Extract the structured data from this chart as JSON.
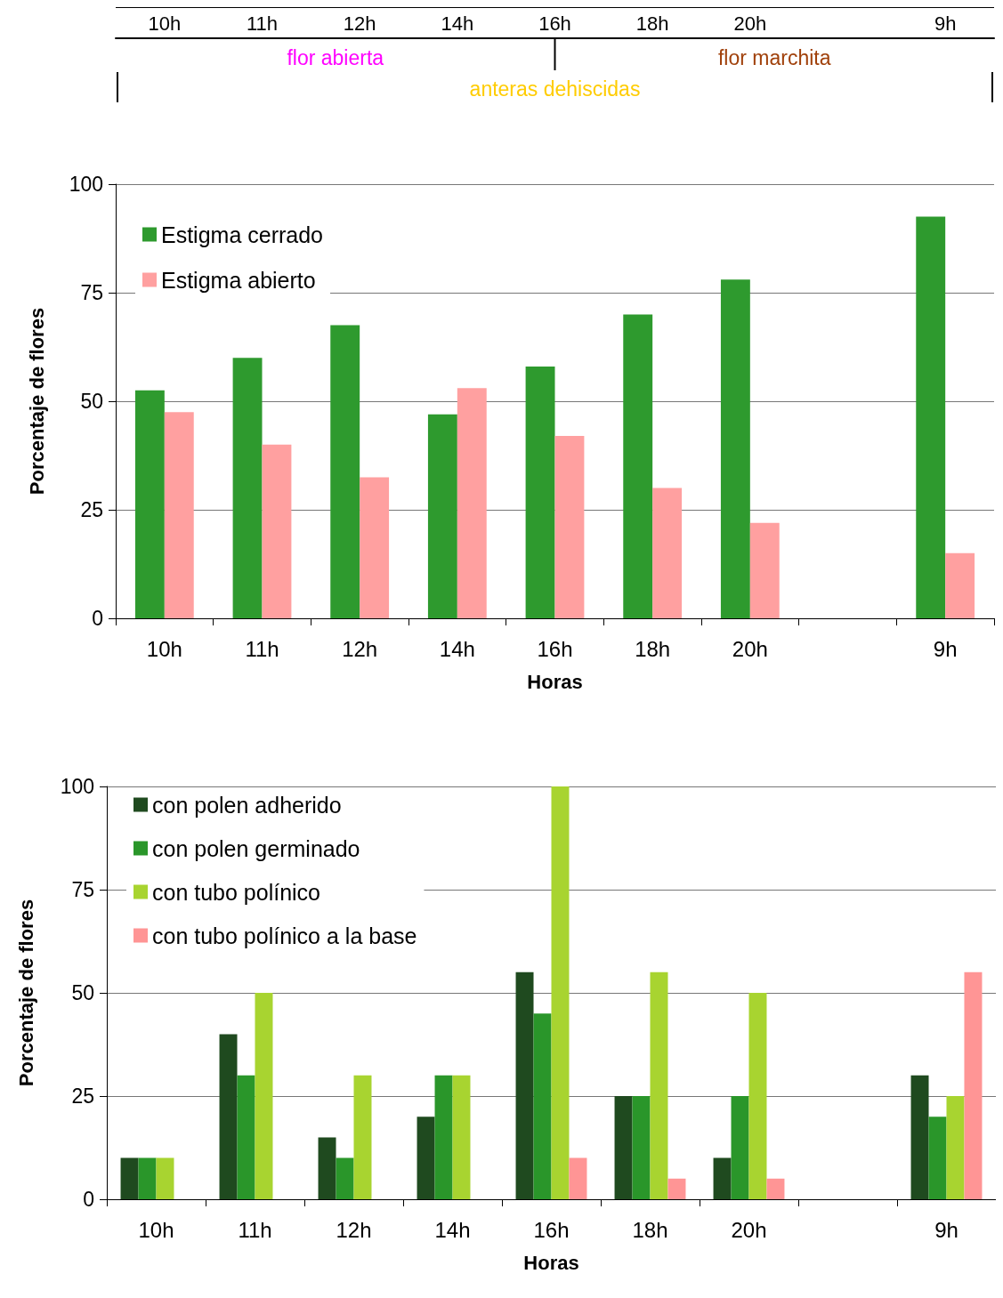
{
  "chart_data": [
    {
      "type": "bar",
      "xlabel": "Horas",
      "ylabel": "Porcentaje de flores",
      "categories": [
        "10h",
        "11h",
        "12h",
        "14h",
        "16h",
        "18h",
        "20h",
        null,
        "9h"
      ],
      "ylim": [
        0,
        100
      ],
      "yticks": [
        0,
        25,
        50,
        75,
        100
      ],
      "grid": "y",
      "legend": "top left",
      "annotations": [
        "flor abierta",
        "flor marchita",
        "anteras dehiscidas"
      ],
      "series": [
        {
          "name": "Estigma cerrado",
          "color": "#2e9a2e",
          "values": [
            52.5,
            60,
            67.5,
            47,
            58,
            70,
            78,
            null,
            92.5
          ]
        },
        {
          "name": "Estigma abierto",
          "color": "#ffa0a0",
          "values": [
            47.5,
            40,
            32.5,
            53,
            42,
            30,
            22,
            null,
            15
          ]
        }
      ]
    },
    {
      "type": "bar",
      "xlabel": "Horas",
      "ylabel": "Porcentaje de flores",
      "categories": [
        "10h",
        "11h",
        "12h",
        "14h",
        "16h",
        "18h",
        "20h",
        null,
        "9h"
      ],
      "ylim": [
        0,
        100
      ],
      "yticks": [
        0,
        25,
        50,
        75,
        100
      ],
      "grid": "y",
      "legend": "top left",
      "series": [
        {
          "name": "con polen adherido",
          "color": "#1f4a1f",
          "values": [
            10,
            40,
            15,
            20,
            55,
            25,
            10,
            null,
            30
          ]
        },
        {
          "name": "con polen germinado",
          "color": "#2a962a",
          "values": [
            10,
            30,
            10,
            30,
            45,
            25,
            25,
            null,
            20
          ]
        },
        {
          "name": "con tubo polínico",
          "color": "#a8d430",
          "values": [
            10,
            50,
            30,
            30,
            100,
            55,
            50,
            null,
            25
          ]
        },
        {
          "name": "con tubo polínico a la base",
          "color": "#ff9595",
          "values": [
            0,
            0,
            0,
            0,
            10,
            5,
            5,
            null,
            55
          ]
        }
      ]
    }
  ]
}
